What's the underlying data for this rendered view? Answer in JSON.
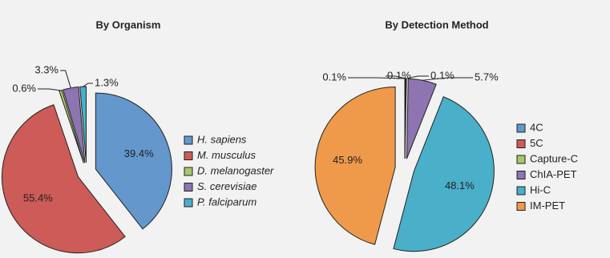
{
  "chart_data": [
    {
      "type": "pie",
      "title": "By Organism",
      "categories": [
        "H. sapiens",
        "M. musculus",
        "D. melanogaster",
        "S. cerevisiae",
        "P. falciparum"
      ],
      "values": [
        39.4,
        55.4,
        0.6,
        3.3,
        1.3
      ],
      "value_labels": [
        "39.4%",
        "55.4%",
        "0.6%",
        "3.3%",
        "1.3%"
      ],
      "colors": [
        "#6497cb",
        "#cd5b57",
        "#a9c76a",
        "#8e74b0",
        "#4aafc8"
      ],
      "legend": "right",
      "legend_italic": true
    },
    {
      "type": "pie",
      "title": "By Detection Method",
      "categories": [
        "4C",
        "5C",
        "Capture-C",
        "ChIA-PET",
        "Hi-C",
        "IM-PET"
      ],
      "values": [
        0.1,
        0.1,
        0.1,
        5.7,
        48.1,
        45.9
      ],
      "value_labels": [
        "0.1%",
        "0.1%",
        "0.1%",
        "5.7%",
        "48.1%",
        "45.9%"
      ],
      "colors": [
        "#6497cb",
        "#cd5b57",
        "#a9c76a",
        "#8e74b0",
        "#4aafc8",
        "#ef9a4b"
      ],
      "legend": "right",
      "legend_italic": false
    }
  ]
}
